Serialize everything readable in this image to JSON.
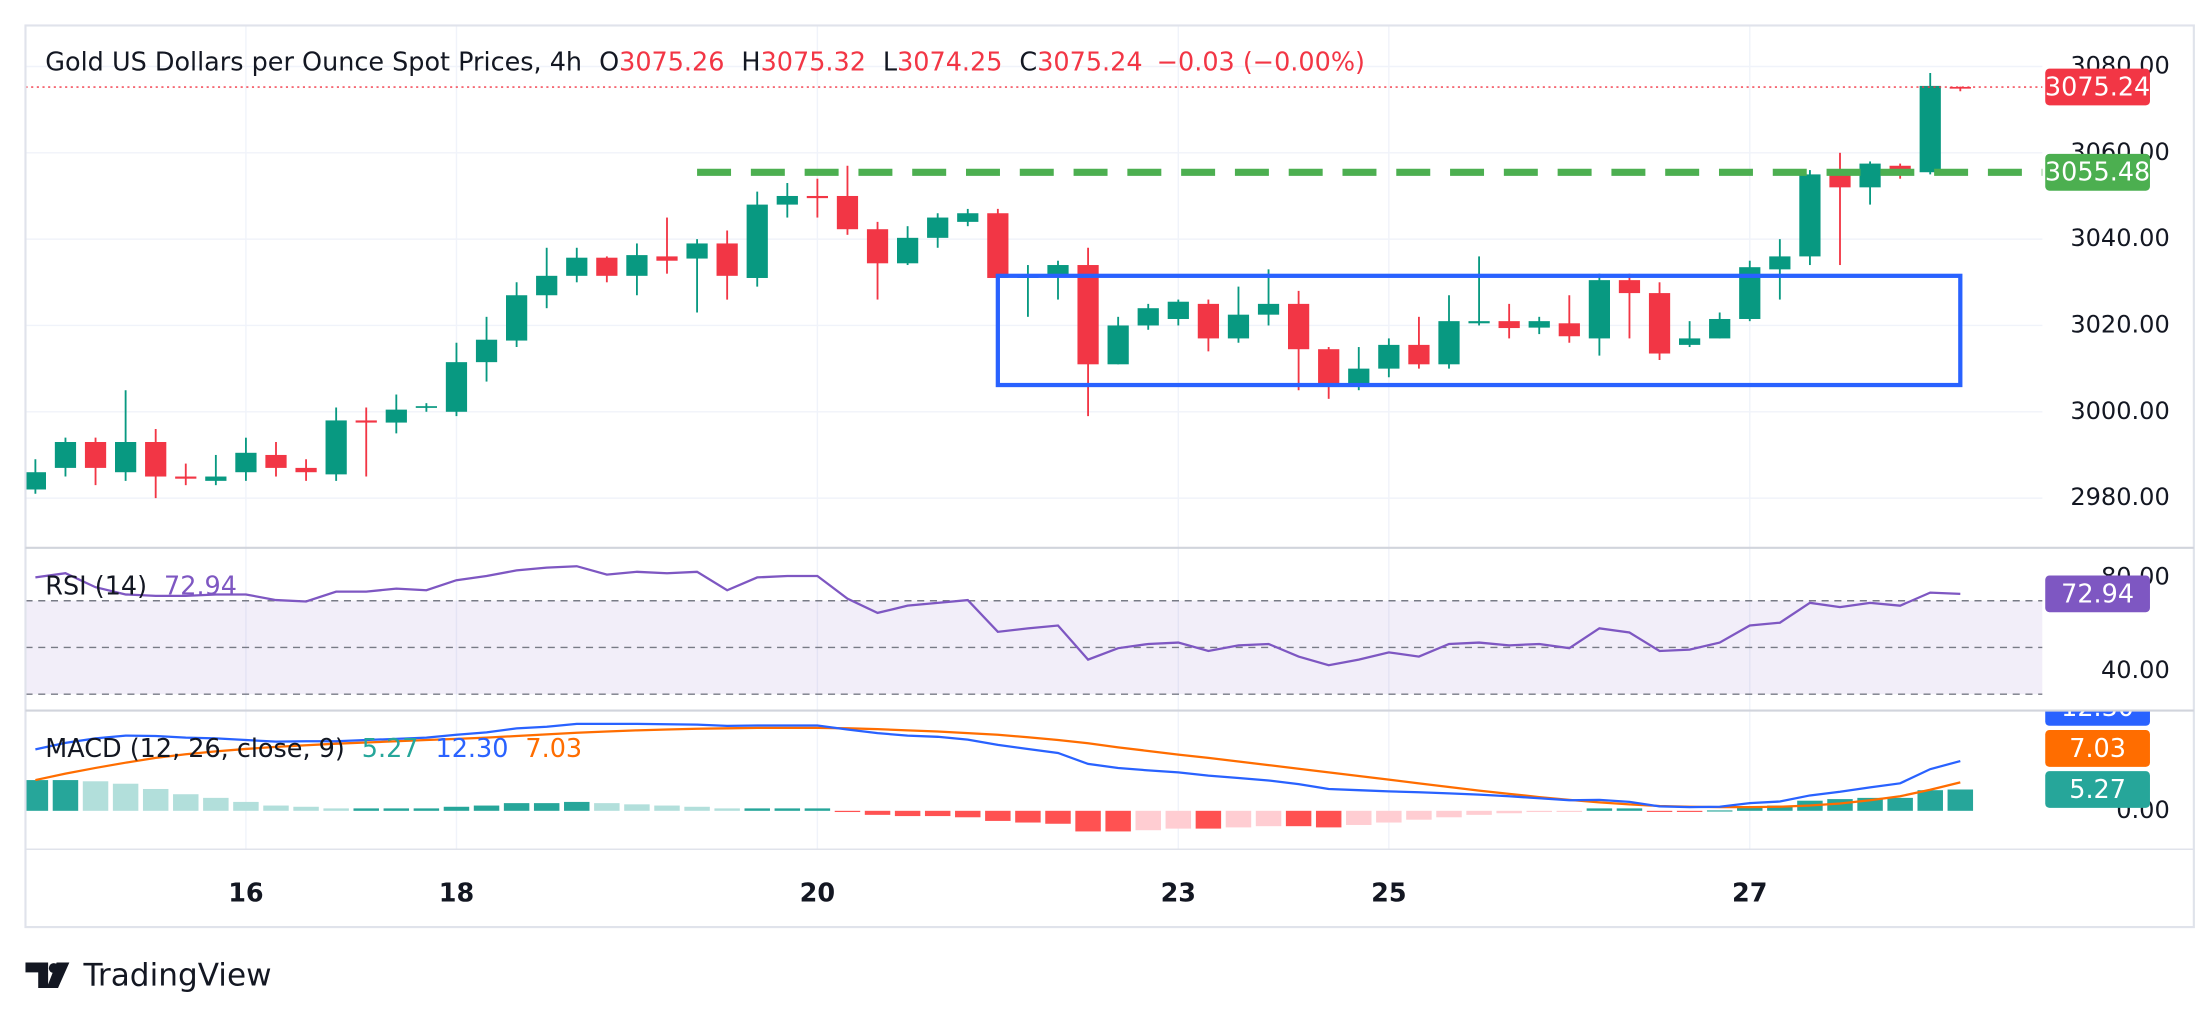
{
  "chart_data": [
    {
      "type": "candlestick",
      "title": "Gold US Dollars per Ounce Spot Prices, 4h",
      "ohlc_labels": [
        "O",
        "H",
        "L",
        "C"
      ],
      "change_label": "−0.03 (−0.00%)",
      "open": [
        2982,
        2987,
        2993,
        2986,
        2993,
        2985,
        2984,
        2986,
        2990,
        2987,
        2985.5,
        2998,
        2997.5,
        3001,
        3000,
        3011.5,
        3016.5,
        3027,
        3031.5,
        3035.7,
        3031.5,
        3036,
        3035.5,
        3039,
        3031,
        3048,
        3050,
        3050,
        3042.3,
        3034.4,
        3040.3,
        3044,
        3046,
        3031,
        3031.5,
        3034,
        3011,
        3020,
        3021.5,
        3025,
        3017,
        3022.5,
        3025,
        3014.5,
        3006,
        3010,
        3015.5,
        3011,
        3020.5,
        3021,
        3019.5,
        3020.5,
        3017,
        3030.5,
        3027.5,
        3015.5,
        3017,
        3021.5,
        3033,
        3036,
        3055,
        3052,
        3057,
        3055.5,
        3075.26
      ],
      "high": [
        2989,
        2994,
        2994,
        3005,
        2996,
        2988,
        2990,
        2994,
        2993,
        2989,
        3001,
        3001,
        3004,
        3002,
        3016,
        3022,
        3030,
        3038,
        3038,
        3036,
        3039,
        3045,
        3040,
        3042,
        3051,
        3053,
        3054,
        3057,
        3044,
        3043,
        3046,
        3047,
        3047,
        3034,
        3035,
        3038,
        3022,
        3025,
        3026,
        3026,
        3029,
        3033,
        3028,
        3015,
        3015,
        3017,
        3022,
        3027,
        3036,
        3025,
        3022,
        3027,
        3032,
        3032,
        3030,
        3021,
        3023,
        3035,
        3040,
        3056,
        3060,
        3058,
        3057.5,
        3078.5,
        3075.32
      ],
      "low": [
        2981,
        2985,
        2983,
        2984,
        2980,
        2983,
        2983,
        2984,
        2985,
        2984,
        2984,
        2985,
        2995,
        3000,
        2999,
        3007,
        3015,
        3024,
        3030,
        3030,
        3027,
        3032,
        3023,
        3026,
        3029,
        3045,
        3045,
        3041,
        3026,
        3034,
        3038,
        3043,
        3030,
        3022,
        3026,
        2999,
        3011,
        3019,
        3020,
        3014,
        3016,
        3020,
        3005,
        3003,
        3005,
        3008,
        3010,
        3010,
        3020,
        3017,
        3018,
        3016,
        3013,
        3017,
        3012,
        3015,
        3017,
        3021,
        3026,
        3034,
        3034,
        3048,
        3054,
        3055,
        3074.25
      ],
      "close": [
        2986,
        2993,
        2987,
        2993,
        2985,
        2984.5,
        2985,
        2990.5,
        2987,
        2986,
        2998,
        2997.5,
        3000.5,
        3001.3,
        3011.5,
        3016.7,
        3027,
        3031.5,
        3035.7,
        3031.5,
        3036.3,
        3035,
        3039,
        3031.5,
        3048,
        3050,
        3049.5,
        3042.3,
        3034.4,
        3040.3,
        3045,
        3046,
        3031,
        3031.5,
        3034,
        3011,
        3020,
        3024,
        3025.5,
        3017,
        3022.5,
        3025,
        3014.5,
        3006,
        3010,
        3015.5,
        3011,
        3021,
        3021,
        3019.4,
        3021,
        3017.5,
        3030.5,
        3027.5,
        3013.5,
        3017,
        3021.5,
        3033.5,
        3036,
        3055,
        3052,
        3057.5,
        3055.5,
        3075.5,
        3075.24
      ],
      "up_color": "#089981",
      "down_color": "#f23645",
      "ylim": [
        2968.5,
        3089.5
      ],
      "yticks": [
        {
          "value": 2980,
          "label": "2980.00"
        },
        {
          "value": 3000,
          "label": "3000.00"
        },
        {
          "value": 3020,
          "label": "3020.00"
        },
        {
          "value": 3040,
          "label": "3040.00"
        },
        {
          "value": 3060,
          "label": "3060.00"
        },
        {
          "value": 3080,
          "label": "3080.00"
        }
      ],
      "grid": true,
      "hline": {
        "value": 3055.48,
        "start": 22,
        "color": "#4caf50"
      },
      "box": {
        "start": 32,
        "end": 64,
        "top": 3031.5,
        "bottom": 3006.2,
        "color": "#2962ff"
      }
    },
    {
      "type": "line",
      "title": "RSI (14)",
      "values": [
        80,
        81.8,
        75.8,
        72.7,
        72.1,
        72.1,
        72.7,
        72.7,
        70.3,
        69.7,
        73.9,
        73.9,
        75.2,
        74.5,
        78.8,
        80.6,
        83,
        84.2,
        84.8,
        81.2,
        82.4,
        81.8,
        82.4,
        74.5,
        80,
        80.6,
        80.6,
        70.9,
        64.8,
        67.9,
        69.1,
        70.3,
        56.7,
        58.2,
        59.4,
        44.8,
        49.7,
        51.5,
        52.1,
        48.5,
        50.9,
        51.5,
        46.1,
        42.4,
        44.8,
        47.9,
        46.1,
        51.5,
        52.1,
        50.9,
        51.5,
        49.7,
        58.2,
        56.4,
        48.5,
        49.1,
        52.1,
        59.4,
        60.6,
        69.1,
        67.3,
        69.1,
        67.9,
        73.5,
        72.94
      ],
      "color": "#7e57c2",
      "ylim": [
        23,
        92.7
      ],
      "yticks": [
        {
          "value": 80,
          "label": "80.00"
        },
        {
          "value": 40,
          "label": "40.00"
        }
      ],
      "levels": [
        70,
        50,
        30
      ]
    },
    {
      "type": "macd",
      "title": "MACD (12, 26, close, 9)",
      "categories": [
        null,
        null,
        null,
        null,
        null,
        null,
        null,
        "16",
        null,
        null,
        null,
        null,
        null,
        null,
        "18",
        null,
        null,
        null,
        null,
        null,
        null,
        null,
        null,
        null,
        null,
        null,
        "20",
        null,
        null,
        null,
        null,
        null,
        null,
        null,
        null,
        null,
        null,
        null,
        "23",
        null,
        null,
        null,
        null,
        null,
        null,
        "25",
        null,
        null,
        null,
        null,
        null,
        null,
        null,
        null,
        null,
        null,
        null,
        "27",
        null,
        null,
        null,
        null,
        null,
        null,
        null
      ],
      "histogram": [
        7.6,
        7.6,
        7.3,
        6.7,
        5.4,
        4.1,
        3.2,
        2.2,
        1.3,
        1.0,
        0.6,
        0.6,
        0.6,
        0.6,
        1.0,
        1.3,
        1.9,
        1.9,
        2.2,
        1.9,
        1.6,
        1.3,
        1.0,
        0.6,
        0.6,
        0.6,
        0.6,
        -0.3,
        -1.0,
        -1.3,
        -1.3,
        -1.6,
        -2.5,
        -2.9,
        -3.2,
        -5.1,
        -5.1,
        -4.8,
        -4.4,
        -4.4,
        -4.1,
        -3.8,
        -3.8,
        -4.1,
        -3.5,
        -2.9,
        -2.2,
        -1.6,
        -1.0,
        -0.6,
        -0.3,
        -0.1,
        0.6,
        0.6,
        -0.1,
        -0.1,
        0.1,
        1.0,
        1.3,
        2.5,
        2.9,
        3.2,
        3.2,
        5.1,
        5.27
      ],
      "macd": [
        15.2,
        16.8,
        17.9,
        18.6,
        18.5,
        18.1,
        17.9,
        17.5,
        17.1,
        17.2,
        17.2,
        17.5,
        17.8,
        18.1,
        18.8,
        19.4,
        20.4,
        20.8,
        21.5,
        21.5,
        21.5,
        21.4,
        21.3,
        21.0,
        21.1,
        21.1,
        21.1,
        20.1,
        19.2,
        18.6,
        18.3,
        17.6,
        16.3,
        15.3,
        14.3,
        11.6,
        10.6,
        10.0,
        9.5,
        8.7,
        8.1,
        7.5,
        6.6,
        5.4,
        5.1,
        4.8,
        4.6,
        4.3,
        4.0,
        3.6,
        3.1,
        2.6,
        2.7,
        2.2,
        1.1,
        0.9,
        1.0,
        1.9,
        2.3,
        3.8,
        4.7,
        5.8,
        6.8,
        10.3,
        12.3
      ],
      "macd_last_label": "12.30",
      "signal": [
        7.6,
        9.2,
        10.6,
        11.9,
        13.1,
        14.0,
        14.7,
        15.3,
        15.8,
        16.2,
        16.6,
        16.9,
        17.2,
        17.5,
        17.8,
        18.1,
        18.5,
        18.9,
        19.3,
        19.6,
        19.9,
        20.1,
        20.3,
        20.4,
        20.5,
        20.5,
        20.5,
        20.4,
        20.2,
        19.9,
        19.6,
        19.2,
        18.8,
        18.2,
        17.5,
        16.7,
        15.7,
        14.8,
        13.9,
        13.1,
        12.2,
        11.3,
        10.4,
        9.5,
        8.6,
        7.7,
        6.8,
        5.9,
        5.0,
        4.2,
        3.4,
        2.7,
        2.1,
        1.6,
        1.2,
        1.0,
        0.9,
        0.9,
        1.0,
        1.3,
        1.8,
        2.6,
        3.6,
        5.2,
        7.03
      ],
      "histogram_colors": [
        "#26a69a",
        "#b2dfdb",
        "#ff5252",
        "#ffcdd2"
      ],
      "macd_color": "#2962ff",
      "signal_color": "#ff6d00",
      "ylim": [
        -9.5,
        24.8
      ],
      "yticks": [
        {
          "value": 0,
          "label": "0.00"
        }
      ]
    }
  ],
  "footer": {
    "brand": "TradingView"
  }
}
